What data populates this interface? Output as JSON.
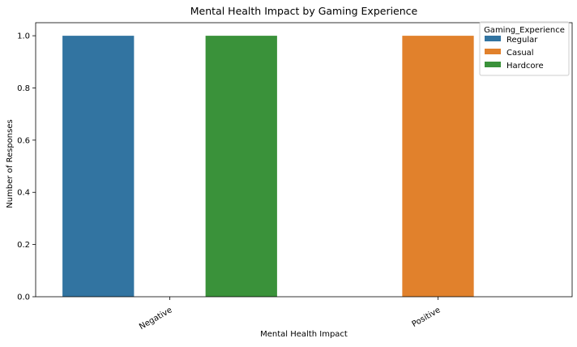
{
  "chart_data": {
    "type": "bar",
    "title": "Mental Health Impact by Gaming Experience",
    "xlabel": "Mental Health Impact",
    "ylabel": "Number of Responses",
    "categories": [
      "Negative",
      "Positive"
    ],
    "series": [
      {
        "name": "Regular",
        "color": "#3274a1",
        "values": [
          1.0,
          0.0
        ]
      },
      {
        "name": "Casual",
        "color": "#e1812c",
        "values": [
          0.0,
          1.0
        ]
      },
      {
        "name": "Hardcore",
        "color": "#3a923a",
        "values": [
          1.0,
          0.0
        ]
      }
    ],
    "ylim": [
      0.0,
      1.05
    ],
    "yticks": [
      "0.0",
      "0.2",
      "0.4",
      "0.6",
      "0.8",
      "1.0"
    ],
    "legend": {
      "title": "Gaming_Experience",
      "placement": "top-right"
    },
    "grid": false
  }
}
